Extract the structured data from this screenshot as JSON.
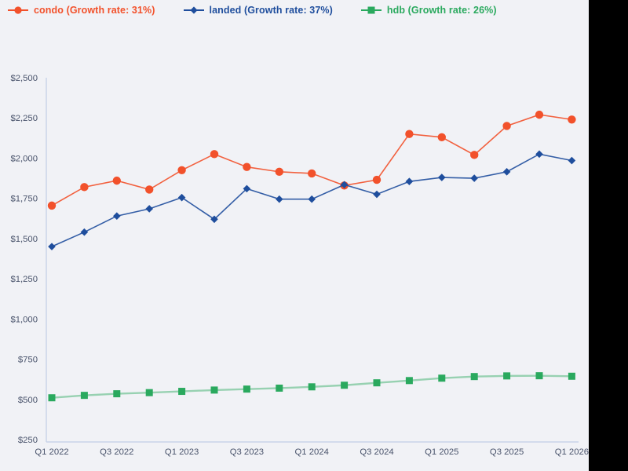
{
  "page": {
    "background_color": "#f1f2f6",
    "right_edge_bar_color": "#000000",
    "axis_color": "#c9d3e8",
    "tick_label_color": "#49536b"
  },
  "legend": [
    {
      "name": "condo",
      "label": "condo (Growth rate: 31%)",
      "color": "#f2512b",
      "marker": "circle"
    },
    {
      "name": "landed",
      "label": "landed (Growth rate: 37%)",
      "color": "#1f4e9d",
      "marker": "diamond"
    },
    {
      "name": "hdb",
      "label": "hdb (Growth rate: 26%)",
      "color": "#2aa95e",
      "marker": "square"
    }
  ],
  "chart_data": {
    "type": "line",
    "title": "",
    "xlabel": "",
    "ylabel": "",
    "grid": false,
    "legend_position": "top-left",
    "ylim": [
      250,
      2500
    ],
    "x": [
      "Q1 2022",
      "Q2 2022",
      "Q3 2022",
      "Q4 2022",
      "Q1 2023",
      "Q2 2023",
      "Q3 2023",
      "Q4 2023",
      "Q1 2024",
      "Q2 2024",
      "Q3 2024",
      "Q4 2024",
      "Q1 2025",
      "Q2 2025",
      "Q3 2025",
      "Q4 2025",
      "Q1 2026"
    ],
    "x_tick_labels_shown": [
      "Q1 2022",
      "Q3 2022",
      "Q1 2023",
      "Q3 2023",
      "Q1 2024",
      "Q3 2024",
      "Q1 2025",
      "Q3 2025",
      "Q1 2026"
    ],
    "y_ticks": [
      {
        "value": 250,
        "label": "$250"
      },
      {
        "value": 500,
        "label": "$500"
      },
      {
        "value": 750,
        "label": "$750"
      },
      {
        "value": 1000,
        "label": "$1,000"
      },
      {
        "value": 1250,
        "label": "$1,250"
      },
      {
        "value": 1500,
        "label": "$1,500"
      },
      {
        "value": 1750,
        "label": "$1,750"
      },
      {
        "value": 2000,
        "label": "$2,000"
      },
      {
        "value": 2250,
        "label": "$2,250"
      },
      {
        "value": 2500,
        "label": "$2,500"
      }
    ],
    "series": [
      {
        "name": "condo",
        "growth_rate": "31%",
        "color": "#f2512b",
        "marker": "circle",
        "values": [
          1705,
          1820,
          1860,
          1805,
          1925,
          2025,
          1945,
          1915,
          1905,
          1830,
          1865,
          2150,
          2130,
          2020,
          2200,
          2270,
          2240
        ]
      },
      {
        "name": "landed",
        "growth_rate": "37%",
        "color": "#1f4e9d",
        "marker": "diamond",
        "values": [
          1450,
          1540,
          1640,
          1685,
          1755,
          1620,
          1810,
          1745,
          1745,
          1835,
          1775,
          1855,
          1880,
          1875,
          1915,
          2025,
          1985
        ]
      },
      {
        "name": "hdb",
        "growth_rate": "26%",
        "color": "#2aa95e",
        "marker": "square",
        "values": [
          510,
          525,
          535,
          542,
          550,
          558,
          564,
          570,
          578,
          588,
          603,
          617,
          632,
          642,
          646,
          647,
          644
        ]
      }
    ]
  }
}
